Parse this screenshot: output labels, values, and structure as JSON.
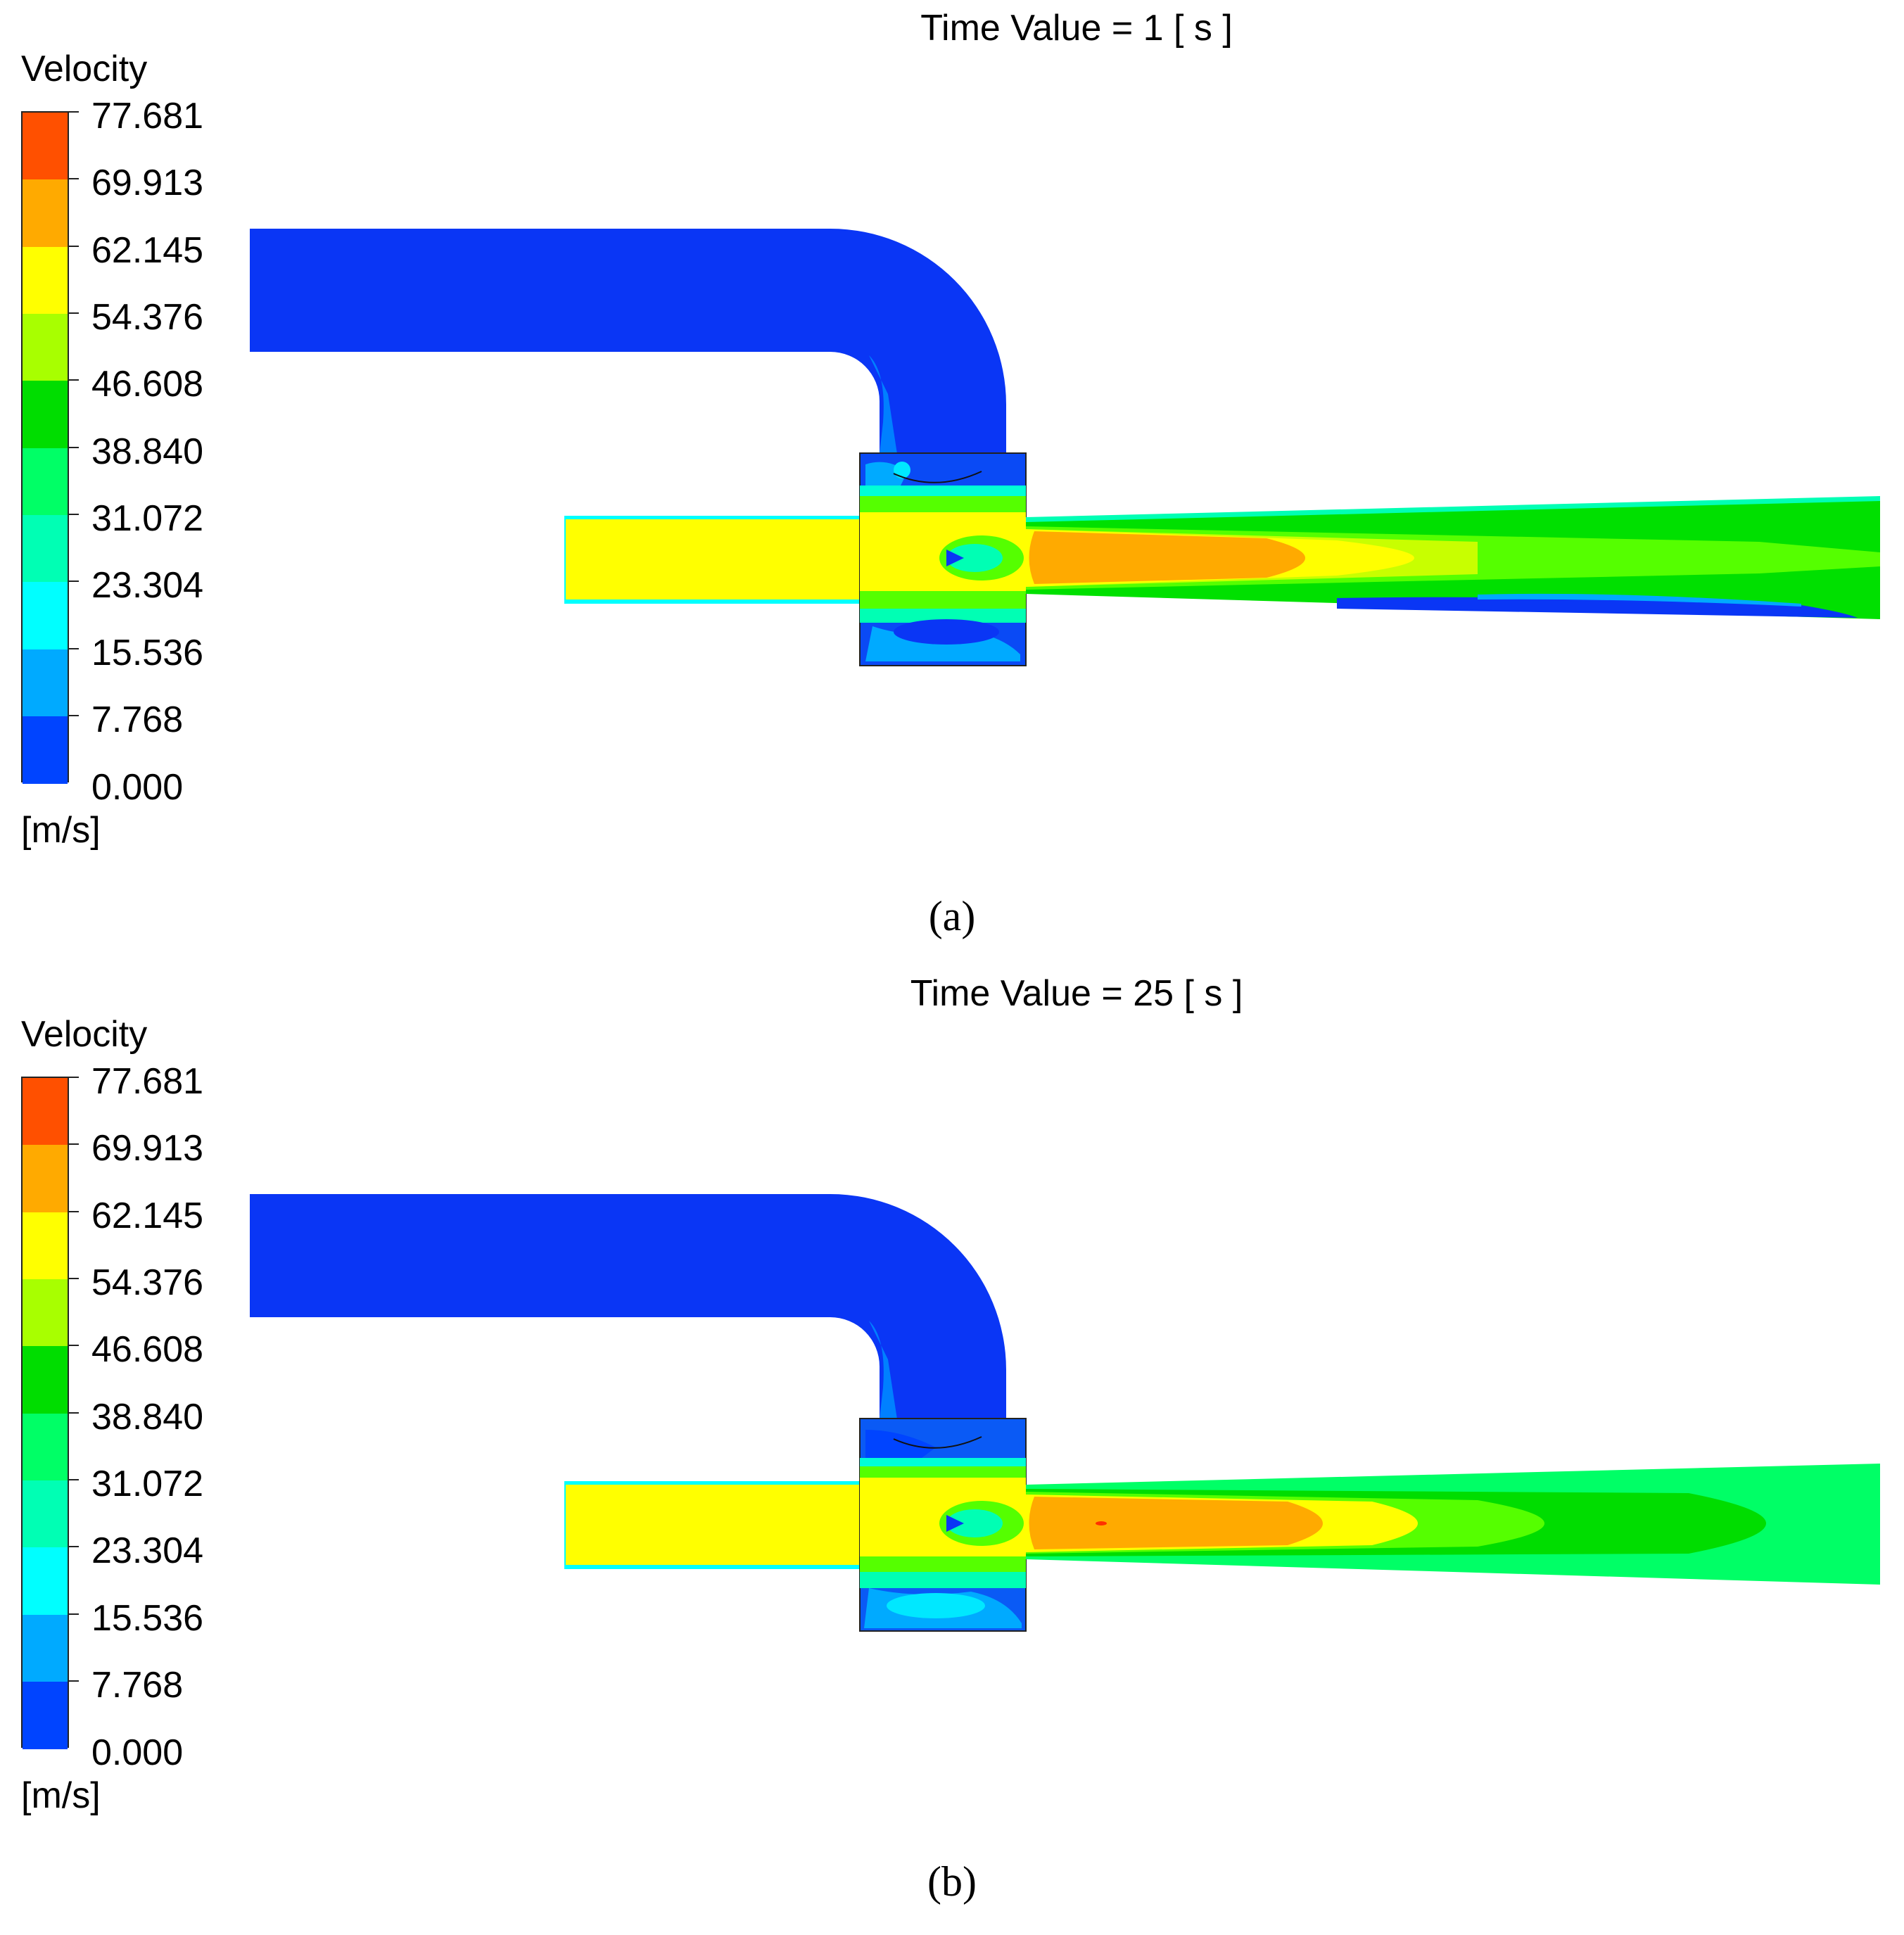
{
  "colors": [
    "#0000ff",
    "#0070ff",
    "#00b4ff",
    "#00e8ff",
    "#00ffd0",
    "#00ff7a",
    "#00d42a",
    "#55ff00",
    "#c8ff00",
    "#ffff00",
    "#ffbf00",
    "#ff7000",
    "#ff2a00"
  ],
  "legend": {
    "title": "Velocity",
    "unit": "[m/s]",
    "ticks": [
      "77.681",
      "69.913",
      "62.145",
      "54.376",
      "46.608",
      "38.840",
      "31.072",
      "23.304",
      "15.536",
      "7.768",
      "0.000"
    ]
  },
  "panels": [
    {
      "id": "a",
      "time_label": "Time Value = 1 [ s ]",
      "caption": "(a)"
    },
    {
      "id": "b",
      "time_label": "Time Value = 25 [ s ]",
      "caption": "(b)"
    }
  ]
}
